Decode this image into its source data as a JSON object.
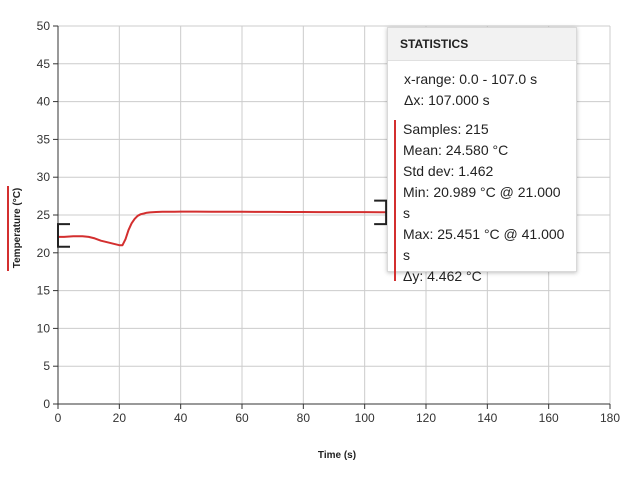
{
  "chart_data": {
    "type": "line",
    "xlabel": "Time (s)",
    "ylabel": "Temperature (°C)",
    "xlim": [
      0,
      180
    ],
    "ylim": [
      0,
      50
    ],
    "x_ticks": [
      "0",
      "20",
      "40",
      "60",
      "80",
      "100",
      "120",
      "140",
      "160",
      "180"
    ],
    "y_ticks": [
      "0",
      "5",
      "10",
      "15",
      "20",
      "25",
      "30",
      "35",
      "40",
      "45",
      "50"
    ],
    "grid": true,
    "series": [
      {
        "color": "#d32f2f",
        "x": [
          0,
          2,
          5,
          8,
          10,
          12,
          14,
          16,
          18,
          20,
          21,
          22,
          23,
          24,
          25,
          26,
          27,
          28,
          29,
          30,
          32,
          34,
          36,
          38,
          40,
          45,
          50,
          55,
          60,
          65,
          70,
          75,
          80,
          85,
          90,
          95,
          100,
          105,
          107
        ],
        "y": [
          22.1,
          22.1,
          22.2,
          22.2,
          22.1,
          21.9,
          21.6,
          21.4,
          21.2,
          21.0,
          20.99,
          21.8,
          23.0,
          23.9,
          24.5,
          24.9,
          25.1,
          25.2,
          25.3,
          25.35,
          25.4,
          25.42,
          25.44,
          25.44,
          25.45,
          25.45,
          25.44,
          25.43,
          25.42,
          25.41,
          25.41,
          25.4,
          25.4,
          25.39,
          25.39,
          25.38,
          25.38,
          25.37,
          25.37
        ]
      }
    ],
    "range_start_bracket": [
      20.8,
      23.8
    ],
    "range_end_bracket": [
      23.8,
      26.9
    ]
  },
  "stats": {
    "title": "STATISTICS",
    "x_range": "x-range: 0.0 - 107.0 s",
    "delta_x": "Δx: 107.000 s",
    "series_color": "#d32f2f",
    "rows": [
      "Samples: 215",
      "Mean: 24.580 °C",
      "Std dev: 1.462",
      "Min: 20.989 °C @ 21.000 s",
      "Max: 25.451 °C @ 41.000 s",
      "Δy: 4.462 °C"
    ]
  }
}
